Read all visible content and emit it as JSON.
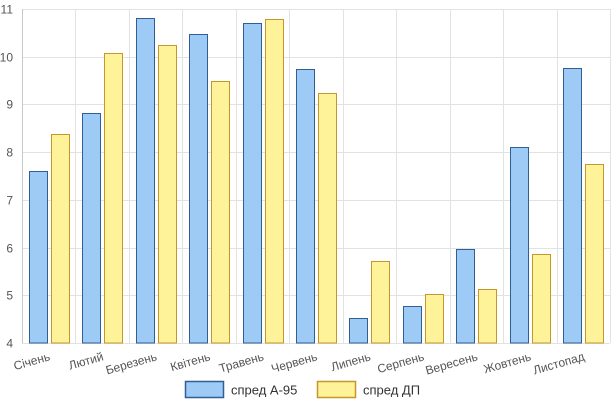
{
  "chart_data": {
    "type": "bar",
    "categories": [
      "Січень",
      "Лютий",
      "Березень",
      "Квітень",
      "Травень",
      "Червень",
      "Липень",
      "Серпень",
      "Вересень",
      "Жовтень",
      "Листопад"
    ],
    "series": [
      {
        "name": "спред А-95",
        "values": [
          7.6,
          8.82,
          10.82,
          10.47,
          10.7,
          9.75,
          4.52,
          4.78,
          5.98,
          8.1,
          9.76
        ],
        "fill": "#9ecbf5",
        "stroke": "#2f5f95"
      },
      {
        "name": "спред ДП",
        "values": [
          8.38,
          10.08,
          10.25,
          9.49,
          10.79,
          9.23,
          5.72,
          5.03,
          5.14,
          5.86,
          7.76
        ],
        "fill": "#fff39a",
        "stroke": "#c5962a"
      }
    ],
    "ylim": [
      4,
      11
    ],
    "yticks": [
      4,
      5,
      6,
      7,
      8,
      9,
      10,
      11
    ],
    "grid": true,
    "legend_position": "bottom",
    "title": "",
    "xlabel": "",
    "ylabel": ""
  }
}
